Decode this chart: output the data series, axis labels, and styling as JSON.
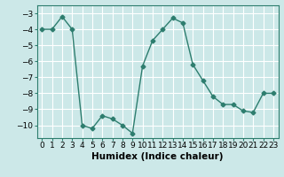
{
  "x": [
    0,
    1,
    2,
    3,
    4,
    5,
    6,
    7,
    8,
    9,
    10,
    11,
    12,
    13,
    14,
    15,
    16,
    17,
    18,
    19,
    20,
    21,
    22,
    23
  ],
  "y": [
    -4.0,
    -4.0,
    -3.2,
    -4.0,
    -10.0,
    -10.2,
    -9.4,
    -9.6,
    -10.0,
    -10.5,
    -6.3,
    -4.7,
    -4.0,
    -3.3,
    -3.6,
    -6.2,
    -7.2,
    -8.2,
    -8.7,
    -8.7,
    -9.1,
    -9.2,
    -8.0,
    -8.0
  ],
  "xlabel": "Humidex (Indice chaleur)",
  "ylim": [
    -10.8,
    -2.5
  ],
  "xlim": [
    -0.5,
    23.5
  ],
  "yticks": [
    -10,
    -9,
    -8,
    -7,
    -6,
    -5,
    -4,
    -3
  ],
  "xticks": [
    0,
    1,
    2,
    3,
    4,
    5,
    6,
    7,
    8,
    9,
    10,
    11,
    12,
    13,
    14,
    15,
    16,
    17,
    18,
    19,
    20,
    21,
    22,
    23
  ],
  "line_color": "#2d7d6e",
  "marker": "D",
  "marker_size": 2.5,
  "bg_color": "#cce8e8",
  "grid_color": "#ffffff",
  "tick_label_size": 6.5,
  "xlabel_size": 7.5
}
